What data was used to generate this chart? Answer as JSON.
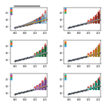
{
  "background": "#ffffff",
  "panels": [
    {
      "fill_colors": [
        "#f5cba7",
        "#f0b27a",
        "#eb9950",
        "#e67e22",
        "#d35400",
        "#a04000",
        "#784212",
        "#4a235a",
        "#1a5276",
        "#117a65",
        "#1e8449",
        "#b7950b",
        "#7d6608",
        "#6e2f1a",
        "#4d4d4d"
      ],
      "fill_alpha": 0.85,
      "line_colors": [
        "#e74c3c",
        "#e67e22",
        "#f1c40f",
        "#2ecc71",
        "#3498db",
        "#9b59b6"
      ],
      "bar_colors": [
        "#5dade2",
        "#2980b9",
        "#1a5276",
        "#7fb3d3",
        "#a9cce3"
      ],
      "obs_color": "#17202a",
      "top_line": true,
      "legend_colors": [
        "#3498db",
        "#e74c3c",
        "#e67e22",
        "#27ae60",
        "#8e44ad"
      ],
      "start_year": 1958,
      "panel_label": "a"
    },
    {
      "fill_colors": [
        "#fadbd8",
        "#f1948a",
        "#ec7063",
        "#e74c3c",
        "#cb4335",
        "#922b21",
        "#6e1b1b",
        "#4a0a0a"
      ],
      "fill_alpha": 0.85,
      "line_colors": [
        "#e74c3c",
        "#e67e22",
        "#f1c40f",
        "#2ecc71",
        "#3498db",
        "#9b59b6"
      ],
      "bar_colors": [
        "#f1948a",
        "#e74c3c",
        "#cb4335",
        "#922b21",
        "#7b241c"
      ],
      "obs_color": "#17202a",
      "top_line": false,
      "legend_colors": [
        "#3498db",
        "#e74c3c",
        "#e67e22",
        "#27ae60"
      ],
      "start_year": 1990,
      "panel_label": "b"
    },
    {
      "fill_colors": [
        "#d5f5e3",
        "#abebc6",
        "#82e0aa",
        "#58d68d",
        "#2ecc71",
        "#27ae60",
        "#1e8449",
        "#196f3d"
      ],
      "fill_alpha": 0.85,
      "line_colors": [
        "#27ae60",
        "#2ecc71",
        "#f1c40f",
        "#e74c3c",
        "#3498db",
        "#9b59b6"
      ],
      "bar_colors": [
        "#82e0aa",
        "#27ae60",
        "#1e8449",
        "#196f3d",
        "#145a32"
      ],
      "obs_color": "#17202a",
      "top_line": false,
      "legend_colors": [
        "#27ae60",
        "#e74c3c",
        "#e67e22",
        "#3498db"
      ],
      "start_year": 1992,
      "panel_label": "c"
    },
    {
      "fill_colors": [
        "#fef9e7",
        "#fdebd0",
        "#fad7a0",
        "#f8c471",
        "#f5b041",
        "#f39c12",
        "#d68910",
        "#b7770d"
      ],
      "fill_alpha": 0.85,
      "line_colors": [
        "#f39c12",
        "#e74c3c",
        "#27ae60",
        "#3498db",
        "#9b59b6",
        "#e67e22"
      ],
      "bar_colors": [
        "#f8c471",
        "#f39c12",
        "#d68910",
        "#b7770d",
        "#9a7d0a"
      ],
      "obs_color": "#17202a",
      "top_line": false,
      "legend_colors": [
        "#f39c12",
        "#e74c3c",
        "#27ae60",
        "#3498db"
      ],
      "start_year": 2001,
      "panel_label": "d"
    },
    {
      "fill_colors": [
        "#f9f0ff",
        "#e8daef",
        "#d7bde2",
        "#c39bd3",
        "#af7ac5",
        "#9b59b6",
        "#884ea0",
        "#76448a"
      ],
      "fill_alpha": 0.85,
      "line_colors": [
        "#9b59b6",
        "#e74c3c",
        "#27ae60",
        "#3498db",
        "#f39c12",
        "#e67e22"
      ],
      "bar_colors": [
        "#d2b4de",
        "#af7ac5",
        "#9b59b6",
        "#884ea0",
        "#76448a"
      ],
      "obs_color": "#17202a",
      "top_line": false,
      "legend_colors": [
        "#9b59b6",
        "#e74c3c",
        "#27ae60",
        "#3498db"
      ],
      "start_year": 2007,
      "panel_label": "e"
    },
    {
      "fill_colors": [
        "#eafaf1",
        "#d5f5e3",
        "#abebc6",
        "#52be80",
        "#1e8449",
        "#196f3d",
        "#0b5345",
        "#154360"
      ],
      "fill_alpha": 0.85,
      "line_colors": [
        "#1e8449",
        "#e74c3c",
        "#27ae60",
        "#3498db",
        "#9b59b6",
        "#f39c12"
      ],
      "bar_colors": [
        "#76d7c4",
        "#1abc9c",
        "#17a589",
        "#148f77",
        "#0e6655"
      ],
      "obs_color": "#17202a",
      "top_line": false,
      "legend_colors": [
        "#1abc9c",
        "#e74c3c",
        "#27ae60",
        "#3498db"
      ],
      "start_year": 2013,
      "panel_label": "f"
    }
  ],
  "xlim": [
    1950,
    2025
  ],
  "ylim": [
    300,
    430
  ],
  "obs_start_year": 1958,
  "obs_base_co2": 315.0,
  "obs_rate": 0.00205,
  "bar_height_scale": [
    1.2,
    1.8,
    2.5,
    3.5,
    4.8
  ],
  "xticks": [
    1960,
    1980,
    2000,
    2020
  ],
  "yticks": [
    320,
    360,
    400
  ]
}
